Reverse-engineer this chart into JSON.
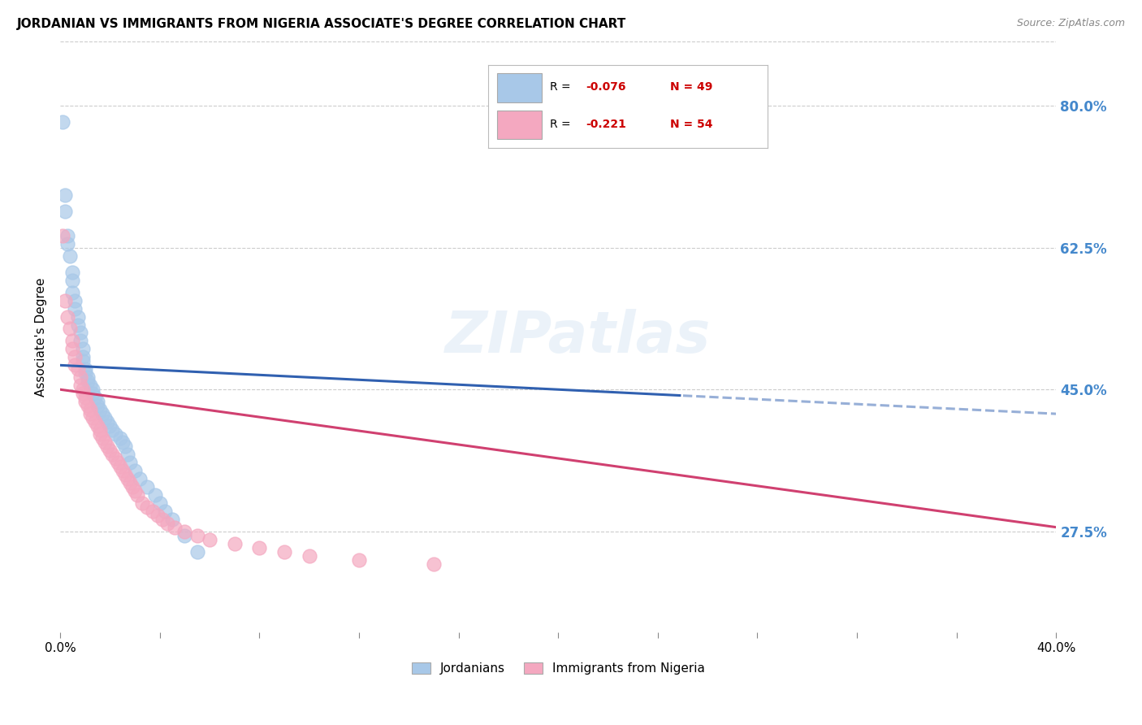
{
  "title": "JORDANIAN VS IMMIGRANTS FROM NIGERIA ASSOCIATE'S DEGREE CORRELATION CHART",
  "source": "Source: ZipAtlas.com",
  "ylabel": "Associate's Degree",
  "y_tick_labels": [
    "27.5%",
    "45.0%",
    "62.5%",
    "80.0%"
  ],
  "y_tick_values": [
    0.275,
    0.45,
    0.625,
    0.8
  ],
  "xlim": [
    0.0,
    0.4
  ],
  "ylim": [
    0.15,
    0.88
  ],
  "legend_label1": "Jordanians",
  "legend_label2": "Immigrants from Nigeria",
  "color_blue": "#A8C8E8",
  "color_pink": "#F4A8C0",
  "color_blue_line": "#3060B0",
  "color_pink_line": "#D04070",
  "R_jordan": -0.076,
  "N_jordan": 49,
  "R_nigeria": -0.221,
  "N_nigeria": 54,
  "watermark": "ZIPatlas",
  "blue_line_y0": 0.48,
  "blue_line_y1": 0.42,
  "blue_line_solid_end": 0.25,
  "pink_line_y0": 0.45,
  "pink_line_y1": 0.28,
  "jordanians_x": [
    0.001,
    0.002,
    0.002,
    0.003,
    0.003,
    0.004,
    0.005,
    0.005,
    0.005,
    0.006,
    0.006,
    0.007,
    0.007,
    0.008,
    0.008,
    0.009,
    0.009,
    0.009,
    0.01,
    0.01,
    0.011,
    0.011,
    0.012,
    0.013,
    0.013,
    0.014,
    0.015,
    0.015,
    0.016,
    0.017,
    0.018,
    0.019,
    0.02,
    0.021,
    0.022,
    0.024,
    0.025,
    0.026,
    0.027,
    0.028,
    0.03,
    0.032,
    0.035,
    0.038,
    0.04,
    0.042,
    0.045,
    0.05,
    0.055
  ],
  "jordanians_y": [
    0.78,
    0.69,
    0.67,
    0.64,
    0.63,
    0.615,
    0.595,
    0.585,
    0.57,
    0.56,
    0.55,
    0.54,
    0.53,
    0.52,
    0.51,
    0.5,
    0.49,
    0.485,
    0.475,
    0.47,
    0.465,
    0.46,
    0.455,
    0.45,
    0.445,
    0.44,
    0.435,
    0.43,
    0.425,
    0.42,
    0.415,
    0.41,
    0.405,
    0.4,
    0.395,
    0.39,
    0.385,
    0.38,
    0.37,
    0.36,
    0.35,
    0.34,
    0.33,
    0.32,
    0.31,
    0.3,
    0.29,
    0.27,
    0.25
  ],
  "nigeria_x": [
    0.001,
    0.002,
    0.003,
    0.004,
    0.005,
    0.005,
    0.006,
    0.006,
    0.007,
    0.008,
    0.008,
    0.009,
    0.009,
    0.01,
    0.01,
    0.011,
    0.012,
    0.012,
    0.013,
    0.014,
    0.015,
    0.016,
    0.016,
    0.017,
    0.018,
    0.019,
    0.02,
    0.021,
    0.022,
    0.023,
    0.024,
    0.025,
    0.026,
    0.027,
    0.028,
    0.029,
    0.03,
    0.031,
    0.033,
    0.035,
    0.037,
    0.039,
    0.041,
    0.043,
    0.046,
    0.05,
    0.055,
    0.06,
    0.07,
    0.08,
    0.09,
    0.1,
    0.12,
    0.15
  ],
  "nigeria_y": [
    0.64,
    0.56,
    0.54,
    0.525,
    0.51,
    0.5,
    0.49,
    0.48,
    0.475,
    0.465,
    0.455,
    0.45,
    0.445,
    0.44,
    0.435,
    0.43,
    0.425,
    0.42,
    0.415,
    0.41,
    0.405,
    0.4,
    0.395,
    0.39,
    0.385,
    0.38,
    0.375,
    0.37,
    0.365,
    0.36,
    0.355,
    0.35,
    0.345,
    0.34,
    0.335,
    0.33,
    0.325,
    0.32,
    0.31,
    0.305,
    0.3,
    0.295,
    0.29,
    0.285,
    0.28,
    0.275,
    0.27,
    0.265,
    0.26,
    0.255,
    0.25,
    0.245,
    0.24,
    0.235
  ]
}
